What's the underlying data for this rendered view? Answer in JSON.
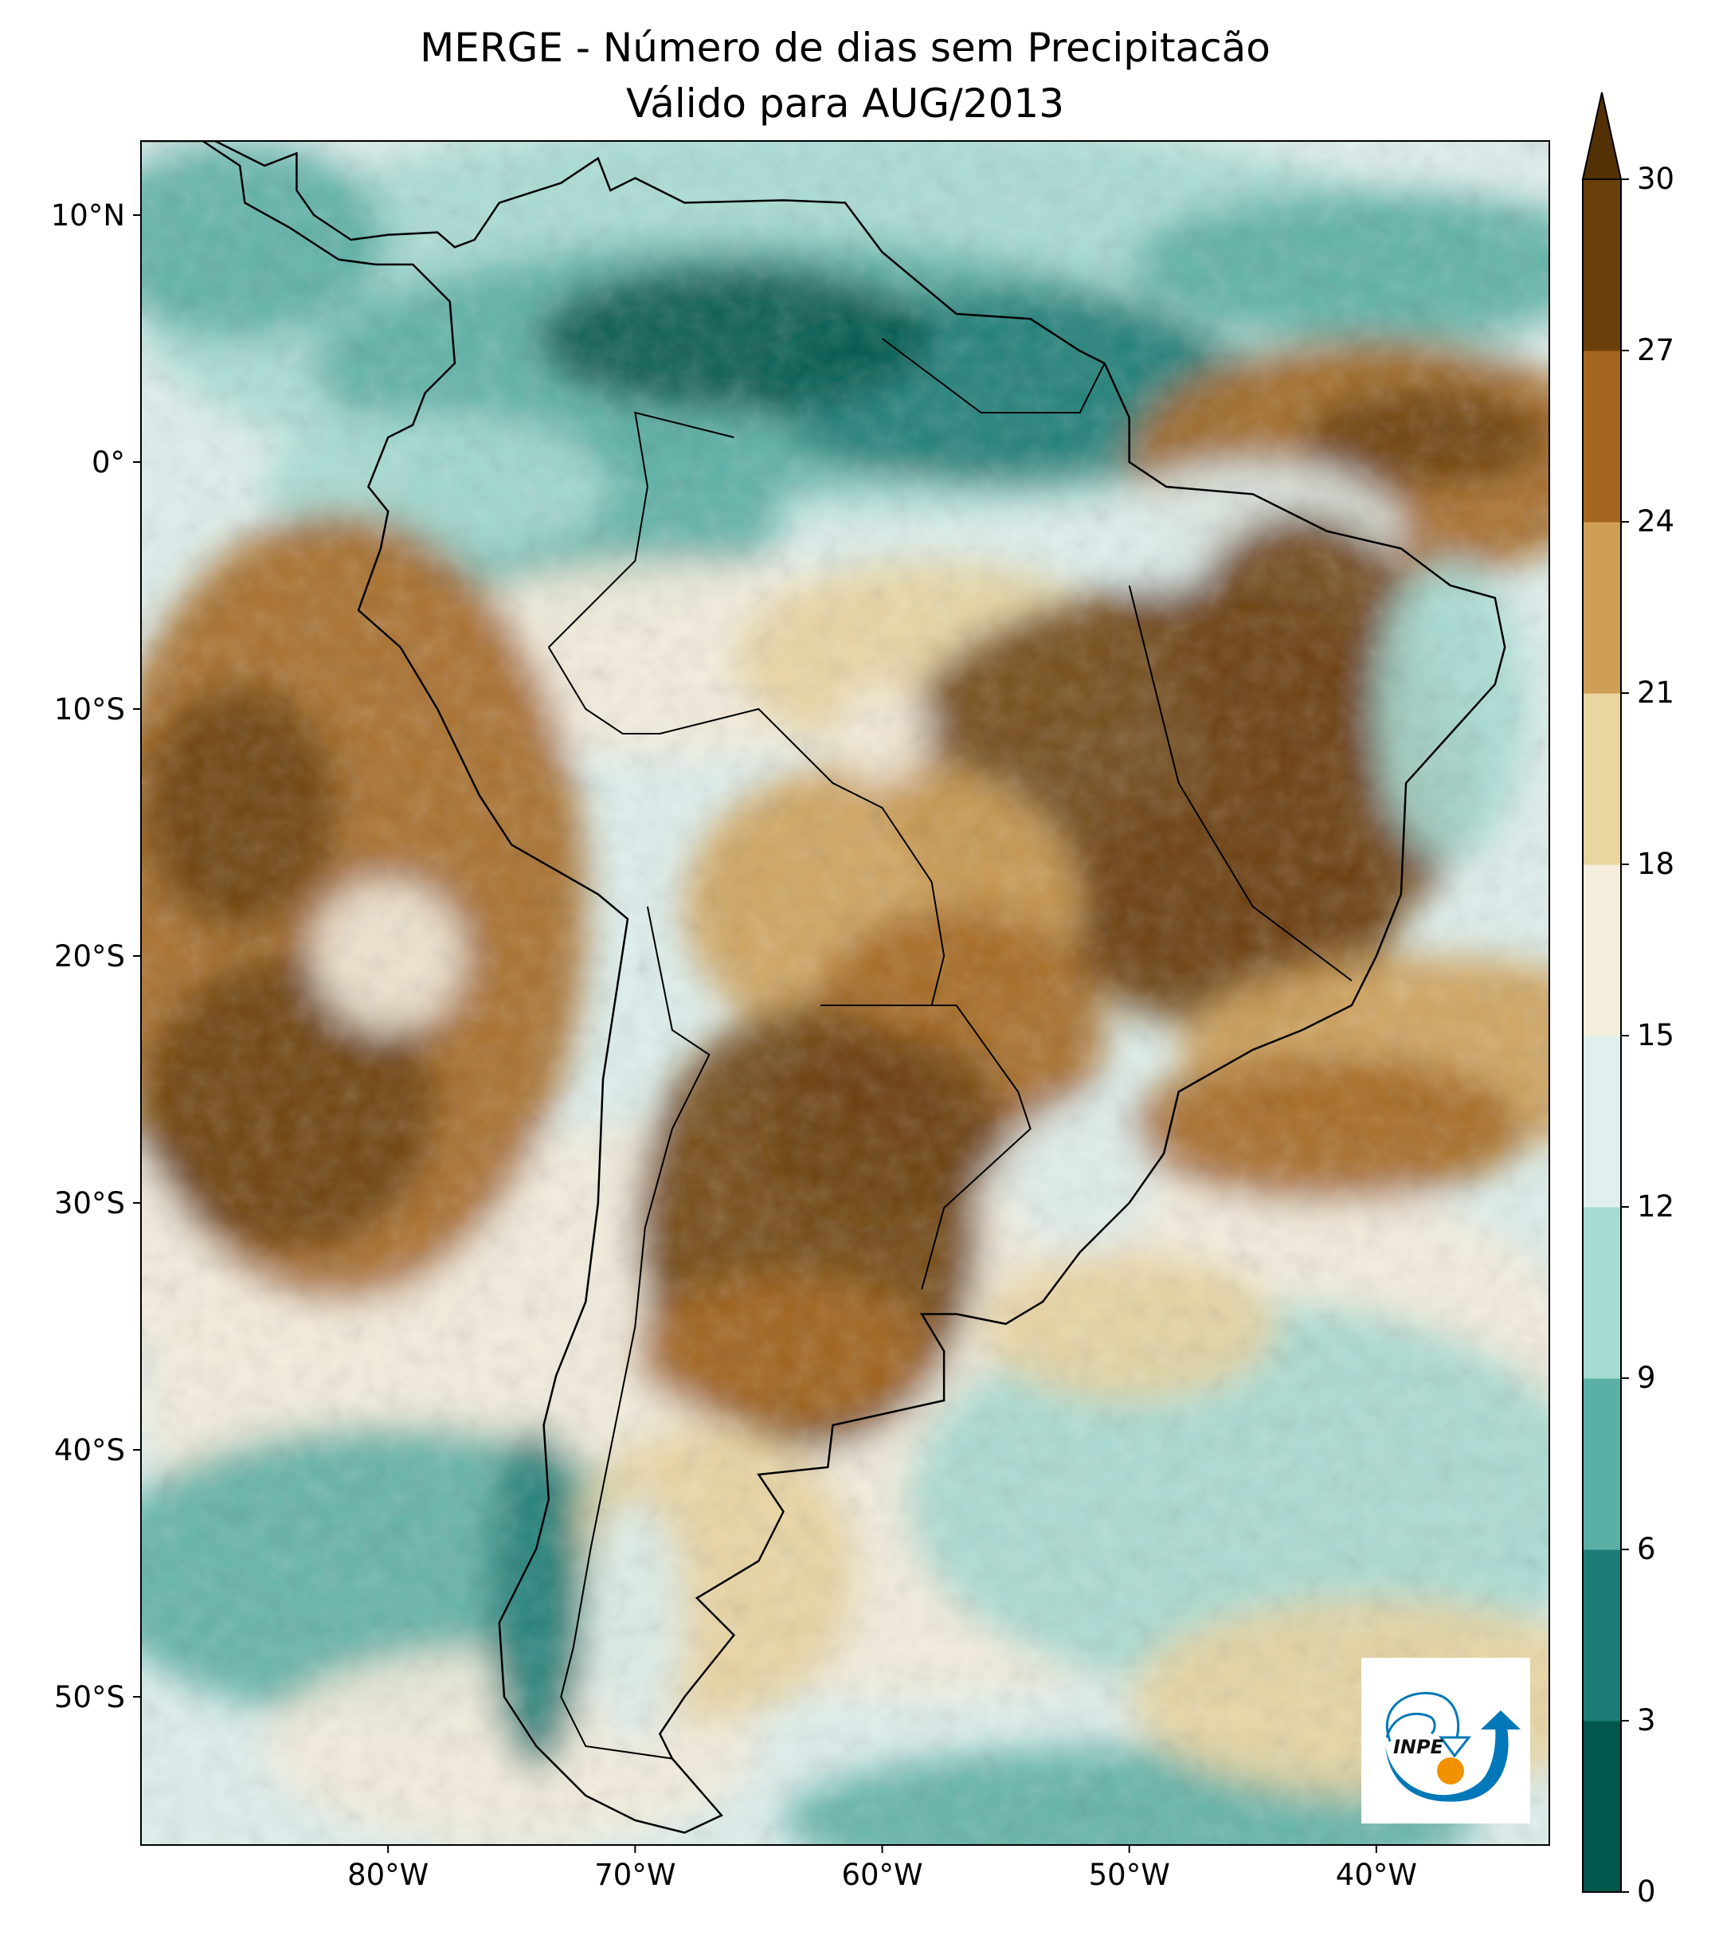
{
  "chart_data": {
    "type": "heatmap",
    "title": "MERGE - Número de dias sem Precipitacão",
    "subtitle": "Válido para AUG/2013",
    "xlabel": "",
    "ylabel": "",
    "xlim": [
      -90,
      -33
    ],
    "ylim": [
      -56,
      13
    ],
    "x_ticks": [
      {
        "value": -80,
        "label": "80°W"
      },
      {
        "value": -70,
        "label": "70°W"
      },
      {
        "value": -60,
        "label": "60°W"
      },
      {
        "value": -50,
        "label": "50°W"
      },
      {
        "value": -40,
        "label": "40°W"
      }
    ],
    "y_ticks": [
      {
        "value": 10,
        "label": "10°N"
      },
      {
        "value": 0,
        "label": "0°"
      },
      {
        "value": -10,
        "label": "10°S"
      },
      {
        "value": -20,
        "label": "20°S"
      },
      {
        "value": -30,
        "label": "30°S"
      },
      {
        "value": -40,
        "label": "40°S"
      },
      {
        "value": -50,
        "label": "50°S"
      }
    ],
    "colorbar": {
      "levels": [
        0,
        3,
        6,
        9,
        12,
        15,
        18,
        21,
        24,
        27,
        30
      ],
      "labels": [
        "0",
        "3",
        "6",
        "9",
        "12",
        "15",
        "18",
        "21",
        "24",
        "27",
        "30"
      ],
      "colors": [
        "#01574b",
        "#1b7d76",
        "#5ab0a5",
        "#a5dbd3",
        "#dff0ee",
        "#f5eedc",
        "#e9d59f",
        "#cf9f56",
        "#a5661f",
        "#6b3f0a"
      ],
      "extend_max_color": "#543005",
      "extend": "max",
      "position": "right"
    },
    "colormap": "BrBG reversed",
    "grid": false
  },
  "logo": {
    "text": "INPE",
    "colors": {
      "blue": "#0077b8",
      "orange": "#f39200"
    }
  }
}
